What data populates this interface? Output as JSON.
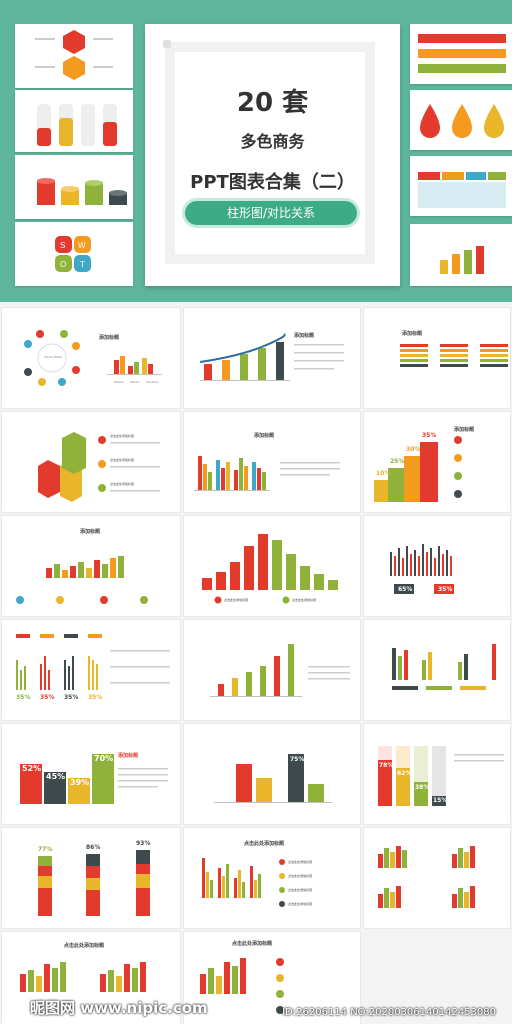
{
  "hero": {
    "number": "20 套",
    "line2": "多色商务",
    "line3": "PPT图表合集（二）",
    "badge": "柱形图/对比关系"
  },
  "labels": {
    "add_title": "添加标题",
    "click_add_title": "点击此处添加标题",
    "social_media": "SOCIAL MEDIA",
    "devices": [
      "Mobile",
      "Tablet",
      "Desktop"
    ]
  },
  "stats": {
    "steps_pcts": [
      "10%",
      "25%",
      "30%",
      "35%"
    ],
    "gender_pcts": [
      "65%",
      "35%"
    ],
    "four_pcts": [
      "35%",
      "35%",
      "35%",
      "35%"
    ],
    "block_pcts": [
      "52%",
      "45%",
      "39%",
      "70%"
    ],
    "tube_pcts": [
      "77%",
      "86%",
      "93%"
    ],
    "vert_pcts": [
      "78%",
      "62%",
      "38%",
      "15%"
    ],
    "bar_pct": "75%"
  },
  "watermark": {
    "left": "昵图网 www.nipic.com",
    "right": "ID:26206114 NO:20200306140142453080"
  },
  "colors": {
    "teal": "#5db59b",
    "red": "#e23b2e",
    "orange": "#f39a1f",
    "yellow": "#e8b52b",
    "green": "#8fb23a",
    "dark": "#3f4a4d"
  }
}
